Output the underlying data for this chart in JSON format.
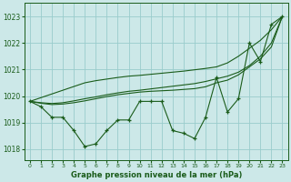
{
  "xlabel": "Graphe pression niveau de la mer (hPa)",
  "bg_color": "#cce8e8",
  "grid_color": "#99cccc",
  "line_color": "#1a5c1a",
  "x_hours": [
    0,
    1,
    2,
    3,
    4,
    5,
    6,
    7,
    8,
    9,
    10,
    11,
    12,
    13,
    14,
    15,
    16,
    17,
    18,
    19,
    20,
    21,
    22,
    23
  ],
  "y_main": [
    1019.8,
    1019.6,
    1019.2,
    1019.2,
    1018.7,
    1018.1,
    1018.2,
    1018.7,
    1019.1,
    1019.1,
    1019.8,
    1019.8,
    1019.8,
    1018.7,
    1018.6,
    1018.4,
    1019.2,
    1020.7,
    1019.4,
    1019.9,
    1022.0,
    1021.3,
    1022.7,
    1023.0
  ],
  "y_smooth1": [
    1019.8,
    1019.75,
    1019.72,
    1019.75,
    1019.82,
    1019.9,
    1019.97,
    1020.05,
    1020.12,
    1020.18,
    1020.22,
    1020.27,
    1020.32,
    1020.37,
    1020.42,
    1020.47,
    1020.55,
    1020.65,
    1020.75,
    1020.9,
    1021.15,
    1021.5,
    1022.0,
    1023.0
  ],
  "y_smooth2": [
    1019.8,
    1019.73,
    1019.68,
    1019.7,
    1019.75,
    1019.82,
    1019.9,
    1019.98,
    1020.05,
    1020.1,
    1020.15,
    1020.18,
    1020.2,
    1020.22,
    1020.25,
    1020.28,
    1020.35,
    1020.5,
    1020.6,
    1020.8,
    1021.1,
    1021.4,
    1021.85,
    1023.0
  ],
  "y_linear": [
    1019.8,
    1019.94,
    1020.08,
    1020.22,
    1020.36,
    1020.5,
    1020.58,
    1020.64,
    1020.7,
    1020.75,
    1020.78,
    1020.82,
    1020.86,
    1020.9,
    1020.94,
    1020.99,
    1021.04,
    1021.1,
    1021.25,
    1021.5,
    1021.8,
    1022.1,
    1022.5,
    1023.0
  ],
  "ylim_min": 1017.6,
  "ylim_max": 1023.5,
  "yticks": [
    1018,
    1019,
    1020,
    1021,
    1022,
    1023
  ],
  "xticks": [
    0,
    1,
    2,
    3,
    4,
    5,
    6,
    7,
    8,
    9,
    10,
    11,
    12,
    13,
    14,
    15,
    16,
    17,
    18,
    19,
    20,
    21,
    22,
    23
  ]
}
